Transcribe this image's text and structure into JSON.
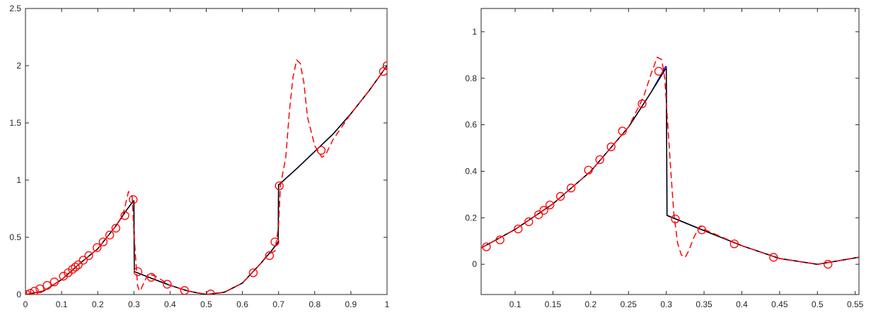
{
  "chart_data": [
    {
      "type": "line",
      "title": "",
      "xlabel": "",
      "ylabel": "",
      "xlim": [
        0,
        1
      ],
      "ylim": [
        0,
        2.5
      ],
      "xticks": [
        "0",
        "0.1",
        "0.2",
        "0.3",
        "0.4",
        "0.5",
        "0.6",
        "0.7",
        "0.8",
        "0.9",
        "1"
      ],
      "yticks": [
        "0",
        "0.5",
        "1",
        "1.5",
        "2",
        "2.5"
      ],
      "grid": false,
      "series": [
        {
          "style": "blue-solid",
          "color": "#0000ff",
          "x": [
            0,
            0.05,
            0.1,
            0.15,
            0.2,
            0.25,
            0.28,
            0.299,
            0.3,
            0.301,
            0.35,
            0.4,
            0.45,
            0.5,
            0.55,
            0.6,
            0.65,
            0.68,
            0.699,
            0.7,
            0.701,
            0.75,
            0.8,
            0.85,
            0.9,
            0.95,
            1.0
          ],
          "y": [
            0,
            0.03,
            0.13,
            0.27,
            0.4,
            0.6,
            0.74,
            0.82,
            0.82,
            0.2,
            0.14,
            0.08,
            0.03,
            0.0,
            0.02,
            0.1,
            0.27,
            0.38,
            0.46,
            0.96,
            0.96,
            1.1,
            1.25,
            1.4,
            1.58,
            1.78,
            2.0
          ]
        },
        {
          "style": "black-solid",
          "color": "#000000",
          "x": [
            0,
            0.05,
            0.1,
            0.15,
            0.2,
            0.25,
            0.28,
            0.299,
            0.3,
            0.301,
            0.35,
            0.4,
            0.45,
            0.5,
            0.55,
            0.6,
            0.65,
            0.68,
            0.699,
            0.7,
            0.701,
            0.75,
            0.8,
            0.85,
            0.9,
            0.95,
            1.0
          ],
          "y": [
            0,
            0.03,
            0.13,
            0.27,
            0.4,
            0.6,
            0.74,
            0.82,
            0.82,
            0.2,
            0.14,
            0.08,
            0.03,
            0.0,
            0.02,
            0.1,
            0.27,
            0.38,
            0.46,
            0.96,
            0.96,
            1.1,
            1.25,
            1.4,
            1.58,
            1.78,
            2.0
          ]
        },
        {
          "style": "red-dashed",
          "color": "#ff0000",
          "x": [
            0,
            0.05,
            0.1,
            0.15,
            0.2,
            0.25,
            0.27,
            0.285,
            0.295,
            0.3,
            0.305,
            0.31,
            0.315,
            0.32,
            0.33,
            0.34,
            0.36,
            0.4,
            0.45,
            0.5,
            0.55,
            0.6,
            0.65,
            0.67,
            0.69,
            0.7,
            0.705,
            0.72,
            0.73,
            0.74,
            0.75,
            0.76,
            0.77,
            0.78,
            0.8,
            0.82,
            0.83,
            0.85,
            0.9,
            0.95,
            1.0
          ],
          "y": [
            0,
            0.03,
            0.13,
            0.27,
            0.4,
            0.6,
            0.7,
            0.9,
            0.86,
            0.55,
            0.3,
            0.08,
            0.03,
            0.05,
            0.12,
            0.18,
            0.16,
            0.08,
            0.03,
            0.0,
            0.02,
            0.1,
            0.27,
            0.35,
            0.38,
            0.6,
            0.95,
            1.2,
            1.6,
            1.9,
            2.05,
            2.02,
            1.85,
            1.55,
            1.3,
            1.2,
            1.22,
            1.35,
            1.58,
            1.78,
            2.0
          ]
        }
      ],
      "markers": {
        "shape": "circle",
        "color": "#ff0000",
        "x": [
          0.003,
          0.013,
          0.025,
          0.04,
          0.06,
          0.08,
          0.105,
          0.118,
          0.13,
          0.138,
          0.146,
          0.16,
          0.175,
          0.198,
          0.215,
          0.233,
          0.25,
          0.275,
          0.298,
          0.311,
          0.348,
          0.392,
          0.44,
          0.512,
          0.63,
          0.675,
          0.69,
          0.702,
          0.818,
          0.99,
          1.0
        ],
        "y": [
          0.0,
          0.01,
          0.03,
          0.05,
          0.08,
          0.11,
          0.16,
          0.19,
          0.22,
          0.24,
          0.26,
          0.3,
          0.34,
          0.41,
          0.46,
          0.52,
          0.58,
          0.69,
          0.83,
          0.2,
          0.15,
          0.09,
          0.035,
          0.005,
          0.19,
          0.34,
          0.46,
          0.95,
          1.26,
          1.95,
          2.0
        ]
      }
    },
    {
      "type": "line",
      "title": "",
      "xlabel": "",
      "ylabel": "",
      "xlim": [
        0.055,
        0.555
      ],
      "ylim": [
        -0.13,
        1.1
      ],
      "xticks": [
        "0.1",
        "0.15",
        "0.2",
        "0.25",
        "0.3",
        "0.35",
        "0.4",
        "0.45",
        "0.5",
        "0.55"
      ],
      "yticks": [
        "0",
        "0.2",
        "0.4",
        "0.6",
        "0.8",
        "1"
      ],
      "grid": false,
      "series": [
        {
          "style": "blue-solid",
          "color": "#0000ff",
          "x": [
            0.055,
            0.1,
            0.15,
            0.2,
            0.25,
            0.28,
            0.299,
            0.3,
            0.301,
            0.35,
            0.4,
            0.45,
            0.5,
            0.555
          ],
          "y": [
            0.07,
            0.15,
            0.26,
            0.4,
            0.59,
            0.74,
            0.85,
            0.85,
            0.21,
            0.145,
            0.08,
            0.025,
            0.0,
            0.03
          ]
        },
        {
          "style": "black-solid",
          "color": "#000000",
          "x": [
            0.055,
            0.1,
            0.15,
            0.2,
            0.25,
            0.28,
            0.299,
            0.3,
            0.301,
            0.35,
            0.4,
            0.45,
            0.5,
            0.555
          ],
          "y": [
            0.07,
            0.15,
            0.26,
            0.4,
            0.59,
            0.74,
            0.84,
            0.84,
            0.21,
            0.145,
            0.08,
            0.025,
            0.0,
            0.03
          ]
        },
        {
          "style": "red-dashed",
          "color": "#ff0000",
          "x": [
            0.055,
            0.1,
            0.15,
            0.2,
            0.25,
            0.27,
            0.28,
            0.288,
            0.294,
            0.298,
            0.302,
            0.306,
            0.31,
            0.315,
            0.32,
            0.325,
            0.33,
            0.337,
            0.345,
            0.35,
            0.4,
            0.45,
            0.5,
            0.555
          ],
          "y": [
            0.07,
            0.15,
            0.26,
            0.4,
            0.59,
            0.72,
            0.82,
            0.89,
            0.88,
            0.8,
            0.6,
            0.4,
            0.22,
            0.09,
            0.04,
            0.03,
            0.06,
            0.12,
            0.165,
            0.15,
            0.08,
            0.025,
            0.0,
            0.03
          ]
        }
      ],
      "markers": {
        "shape": "circle",
        "color": "#ff0000",
        "x": [
          0.062,
          0.08,
          0.104,
          0.118,
          0.131,
          0.138,
          0.146,
          0.16,
          0.174,
          0.197,
          0.212,
          0.227,
          0.242,
          0.268,
          0.29,
          0.312,
          0.347,
          0.39,
          0.442,
          0.514
        ],
        "y": [
          0.075,
          0.105,
          0.152,
          0.183,
          0.213,
          0.232,
          0.255,
          0.292,
          0.328,
          0.405,
          0.45,
          0.505,
          0.573,
          0.69,
          0.83,
          0.195,
          0.148,
          0.088,
          0.03,
          0.0
        ]
      }
    }
  ]
}
